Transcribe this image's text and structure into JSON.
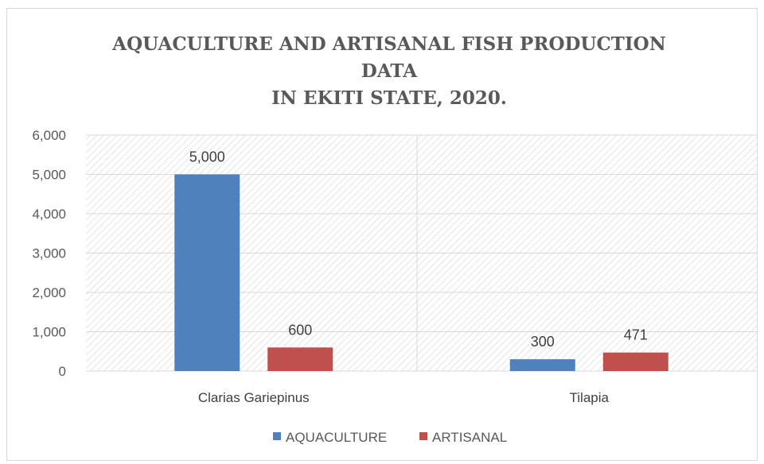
{
  "chart_data": {
    "type": "bar",
    "title_lines": [
      "AQUACULTURE AND ARTISANAL FISH PRODUCTION",
      "DATA",
      "IN EKITI STATE, 2020."
    ],
    "categories": [
      "Clarias Gariepinus",
      "Tilapia"
    ],
    "series": [
      {
        "name": "AQUACULTURE",
        "values": [
          5000,
          300
        ],
        "color": "#4f81bd"
      },
      {
        "name": "ARTISANAL",
        "values": [
          600,
          471
        ],
        "color": "#c0504d"
      }
    ],
    "value_labels": [
      [
        "5,000",
        "300"
      ],
      [
        "600",
        "471"
      ]
    ],
    "ylim": [
      0,
      6000
    ],
    "yticks": [
      "0",
      "1,000",
      "2,000",
      "3,000",
      "4,000",
      "5,000",
      "6,000"
    ],
    "legend_position": "bottom",
    "grid": true,
    "plot_background": "diagonal-hatch"
  }
}
